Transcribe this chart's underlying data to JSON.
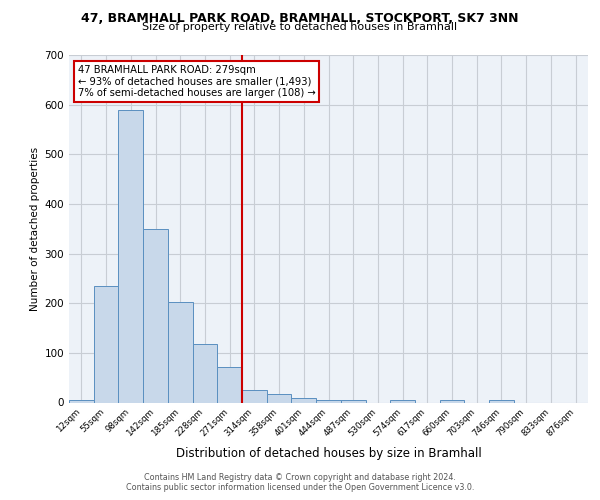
{
  "title_line1": "47, BRAMHALL PARK ROAD, BRAMHALL, STOCKPORT, SK7 3NN",
  "title_line2": "Size of property relative to detached houses in Bramhall",
  "xlabel": "Distribution of detached houses by size in Bramhall",
  "ylabel": "Number of detached properties",
  "bin_labels": [
    "12sqm",
    "55sqm",
    "98sqm",
    "142sqm",
    "185sqm",
    "228sqm",
    "271sqm",
    "314sqm",
    "358sqm",
    "401sqm",
    "444sqm",
    "487sqm",
    "530sqm",
    "574sqm",
    "617sqm",
    "660sqm",
    "703sqm",
    "746sqm",
    "790sqm",
    "833sqm",
    "876sqm"
  ],
  "bar_values": [
    5,
    235,
    590,
    350,
    203,
    117,
    72,
    25,
    18,
    9,
    5,
    5,
    0,
    5,
    0,
    5,
    0,
    5,
    0,
    0,
    0
  ],
  "bar_color": "#c8d8ea",
  "bar_edge_color": "#5a8fc0",
  "red_line_x": 7,
  "red_line_color": "#cc0000",
  "annotation_box_text": "47 BRAMHALL PARK ROAD: 279sqm\n← 93% of detached houses are smaller (1,493)\n7% of semi-detached houses are larger (108) →",
  "footer_line1": "Contains HM Land Registry data © Crown copyright and database right 2024.",
  "footer_line2": "Contains public sector information licensed under the Open Government Licence v3.0.",
  "ylim": [
    0,
    700
  ],
  "yticks": [
    0,
    100,
    200,
    300,
    400,
    500,
    600,
    700
  ],
  "bg_color": "#edf2f8",
  "grid_color": "#c8cdd4"
}
